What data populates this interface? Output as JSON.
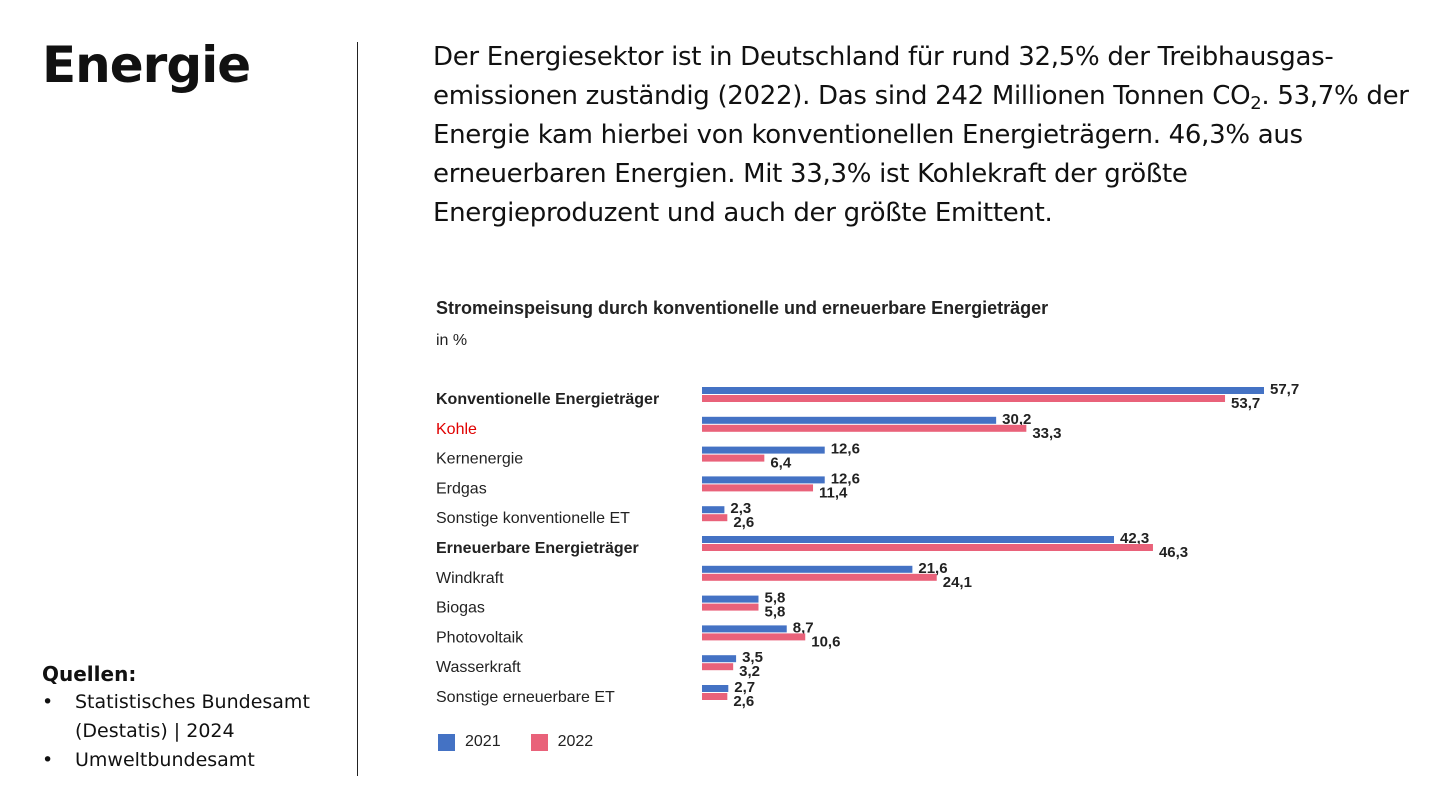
{
  "page_title": "Energie",
  "intro": {
    "text_before_sub": "Der Energiesektor ist in Deutschland für rund 32,5% der Treibhausgas-emissionen zuständig (2022). Das sind 242 Millionen Tonnen CO",
    "sub": "2",
    "text_after_sub": ". 53,7% der Energie kam hierbei von konventionellen Energieträgern. 46,3% aus erneuerbaren Energien. Mit 33,3% ist Kohlekraft der größte Energieproduzent und auch der größte Emittent."
  },
  "sources": {
    "heading": "Quellen:",
    "items": [
      "Statistisches Bundesamt (Destatis) | 2024",
      "Umweltbundesamt"
    ]
  },
  "chart_data": {
    "type": "bar",
    "orientation": "horizontal",
    "title": "Stromeinspeisung durch konventionelle und erneuerbare Energieträger",
    "unit": "in %",
    "categories": [
      "Konventionelle Energieträger",
      "Kohle",
      "Kernenergie",
      "Erdgas",
      "Sonstige konventionelle ET",
      "Erneuerbare Energieträger",
      "Windkraft",
      "Biogas",
      "Photovoltaik",
      "Wasserkraft",
      "Sonstige erneuerbare ET"
    ],
    "category_style": [
      "bold",
      "highlight",
      "normal",
      "normal",
      "normal",
      "bold",
      "normal",
      "normal",
      "normal",
      "normal",
      "normal"
    ],
    "series": [
      {
        "name": "2021",
        "color": "#4472C4",
        "values": [
          57.7,
          30.2,
          12.6,
          12.6,
          2.3,
          42.3,
          21.6,
          5.8,
          8.7,
          3.5,
          2.7
        ],
        "labels": [
          "57,7",
          "30,2",
          "12,6",
          "12,6",
          "2,3",
          "42,3",
          "21,6",
          "5,8",
          "8,7",
          "3,5",
          "2,7"
        ]
      },
      {
        "name": "2022",
        "color": "#E9627A",
        "values": [
          53.7,
          33.3,
          6.4,
          11.4,
          2.6,
          46.3,
          24.1,
          5.8,
          10.6,
          3.2,
          2.6
        ],
        "labels": [
          "53,7",
          "33,3",
          "6,4",
          "11,4",
          "2,6",
          "46,3",
          "24,1",
          "5,8",
          "10,6",
          "3,2",
          "2,6"
        ]
      }
    ],
    "xlim": [
      0,
      60
    ],
    "highlight_color": "#E00000",
    "legend_position": "bottom-left",
    "grid": false
  }
}
